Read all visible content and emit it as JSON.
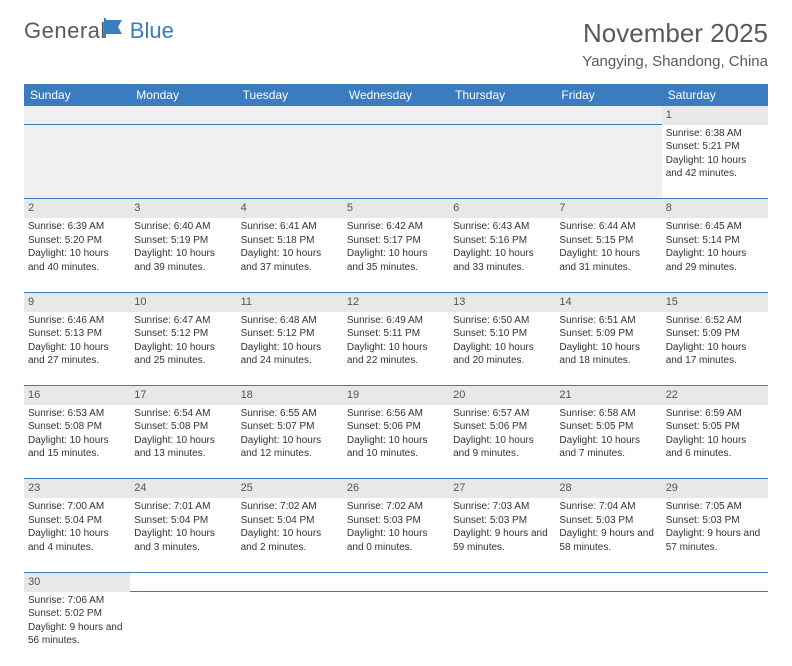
{
  "logo": {
    "text1": "General",
    "text2": "Blue"
  },
  "header": {
    "month": "November 2025",
    "location": "Yangying, Shandong, China"
  },
  "colors": {
    "headerBg": "#3b7bbf",
    "headerText": "#ffffff",
    "dayNumBg": "#e8e8e8",
    "emptyBg": "#f0f0f0",
    "border": "#3b7bbf",
    "text": "#333333"
  },
  "typography": {
    "titleSize": 26,
    "locationSize": 15,
    "thSize": 12,
    "cellSize": 10,
    "dayNumSize": 11
  },
  "weekdays": [
    "Sunday",
    "Monday",
    "Tuesday",
    "Wednesday",
    "Thursday",
    "Friday",
    "Saturday"
  ],
  "weeks": [
    [
      null,
      null,
      null,
      null,
      null,
      null,
      {
        "n": "1",
        "sr": "6:38 AM",
        "ss": "5:21 PM",
        "dl": "10 hours and 42 minutes."
      }
    ],
    [
      {
        "n": "2",
        "sr": "6:39 AM",
        "ss": "5:20 PM",
        "dl": "10 hours and 40 minutes."
      },
      {
        "n": "3",
        "sr": "6:40 AM",
        "ss": "5:19 PM",
        "dl": "10 hours and 39 minutes."
      },
      {
        "n": "4",
        "sr": "6:41 AM",
        "ss": "5:18 PM",
        "dl": "10 hours and 37 minutes."
      },
      {
        "n": "5",
        "sr": "6:42 AM",
        "ss": "5:17 PM",
        "dl": "10 hours and 35 minutes."
      },
      {
        "n": "6",
        "sr": "6:43 AM",
        "ss": "5:16 PM",
        "dl": "10 hours and 33 minutes."
      },
      {
        "n": "7",
        "sr": "6:44 AM",
        "ss": "5:15 PM",
        "dl": "10 hours and 31 minutes."
      },
      {
        "n": "8",
        "sr": "6:45 AM",
        "ss": "5:14 PM",
        "dl": "10 hours and 29 minutes."
      }
    ],
    [
      {
        "n": "9",
        "sr": "6:46 AM",
        "ss": "5:13 PM",
        "dl": "10 hours and 27 minutes."
      },
      {
        "n": "10",
        "sr": "6:47 AM",
        "ss": "5:12 PM",
        "dl": "10 hours and 25 minutes."
      },
      {
        "n": "11",
        "sr": "6:48 AM",
        "ss": "5:12 PM",
        "dl": "10 hours and 24 minutes."
      },
      {
        "n": "12",
        "sr": "6:49 AM",
        "ss": "5:11 PM",
        "dl": "10 hours and 22 minutes."
      },
      {
        "n": "13",
        "sr": "6:50 AM",
        "ss": "5:10 PM",
        "dl": "10 hours and 20 minutes."
      },
      {
        "n": "14",
        "sr": "6:51 AM",
        "ss": "5:09 PM",
        "dl": "10 hours and 18 minutes."
      },
      {
        "n": "15",
        "sr": "6:52 AM",
        "ss": "5:09 PM",
        "dl": "10 hours and 17 minutes."
      }
    ],
    [
      {
        "n": "16",
        "sr": "6:53 AM",
        "ss": "5:08 PM",
        "dl": "10 hours and 15 minutes."
      },
      {
        "n": "17",
        "sr": "6:54 AM",
        "ss": "5:08 PM",
        "dl": "10 hours and 13 minutes."
      },
      {
        "n": "18",
        "sr": "6:55 AM",
        "ss": "5:07 PM",
        "dl": "10 hours and 12 minutes."
      },
      {
        "n": "19",
        "sr": "6:56 AM",
        "ss": "5:06 PM",
        "dl": "10 hours and 10 minutes."
      },
      {
        "n": "20",
        "sr": "6:57 AM",
        "ss": "5:06 PM",
        "dl": "10 hours and 9 minutes."
      },
      {
        "n": "21",
        "sr": "6:58 AM",
        "ss": "5:05 PM",
        "dl": "10 hours and 7 minutes."
      },
      {
        "n": "22",
        "sr": "6:59 AM",
        "ss": "5:05 PM",
        "dl": "10 hours and 6 minutes."
      }
    ],
    [
      {
        "n": "23",
        "sr": "7:00 AM",
        "ss": "5:04 PM",
        "dl": "10 hours and 4 minutes."
      },
      {
        "n": "24",
        "sr": "7:01 AM",
        "ss": "5:04 PM",
        "dl": "10 hours and 3 minutes."
      },
      {
        "n": "25",
        "sr": "7:02 AM",
        "ss": "5:04 PM",
        "dl": "10 hours and 2 minutes."
      },
      {
        "n": "26",
        "sr": "7:02 AM",
        "ss": "5:03 PM",
        "dl": "10 hours and 0 minutes."
      },
      {
        "n": "27",
        "sr": "7:03 AM",
        "ss": "5:03 PM",
        "dl": "9 hours and 59 minutes."
      },
      {
        "n": "28",
        "sr": "7:04 AM",
        "ss": "5:03 PM",
        "dl": "9 hours and 58 minutes."
      },
      {
        "n": "29",
        "sr": "7:05 AM",
        "ss": "5:03 PM",
        "dl": "9 hours and 57 minutes."
      }
    ],
    [
      {
        "n": "30",
        "sr": "7:06 AM",
        "ss": "5:02 PM",
        "dl": "9 hours and 56 minutes."
      },
      null,
      null,
      null,
      null,
      null,
      null
    ]
  ],
  "labels": {
    "sunrise": "Sunrise:",
    "sunset": "Sunset:",
    "daylight": "Daylight:"
  }
}
